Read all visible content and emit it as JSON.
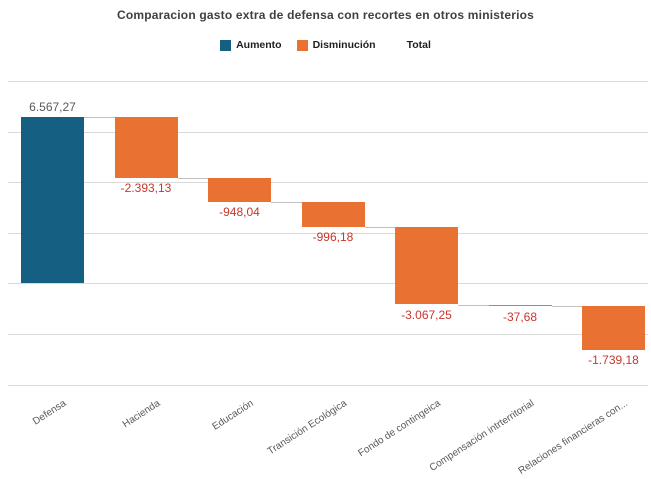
{
  "chart_data": {
    "type": "waterfall",
    "title": "Comparacion gasto extra de defensa con recortes en otros ministerios",
    "categories": [
      "Defensa",
      "Hacienda",
      "Educación",
      "Transición Ecológica",
      "Fondo de contingeica",
      "Compensación intrterritorial",
      "Relaciones financieras con..."
    ],
    "values": [
      6567.27,
      -2393.13,
      -948.04,
      -996.18,
      -3067.25,
      -37.68,
      -1739.18
    ],
    "value_labels": [
      "6.567,27",
      "-2.393,13",
      "-948,04",
      "-996,18",
      "-3.067,25",
      "-37,68",
      "-1.739,18"
    ],
    "legend": [
      {
        "label": "Aumento",
        "color": "#156082"
      },
      {
        "label": "Disminución",
        "color": "#E97132"
      },
      {
        "label": "Total",
        "color": "#FFFFFF"
      }
    ],
    "legend_position": "top",
    "grid": "horizontal",
    "ylim": [
      -4000,
      8000
    ],
    "grid_step": 2000,
    "y_axis_labels_visible": false,
    "colors": {
      "increase": "#156082",
      "decrease": "#E97132",
      "positive_label": "#595959",
      "negative_label": "#CA352B",
      "gridline": "#D9D9D9",
      "connector": "#C0C0C0",
      "axis_label": "#595959",
      "title": "#404040"
    }
  }
}
